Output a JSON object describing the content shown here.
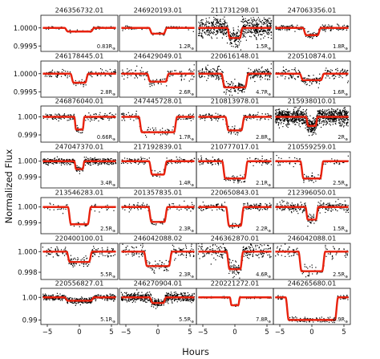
{
  "chart_data": {
    "type": "scatter",
    "xlabel": "Hours",
    "ylabel": "Normalized Flux",
    "xlim": [
      -6,
      6
    ],
    "xticks": [
      -5,
      0,
      5
    ],
    "radius_unit": "R",
    "radius_unit_sub": "⊕",
    "series_styles": {
      "data_points": "#000000",
      "model_fit": "#e8210d"
    },
    "rows": [
      {
        "ylim": [
          0.99935,
          1.00035
        ],
        "yticks": [
          0.9995,
          1.0
        ],
        "ytick_labels": [
          "0.9995",
          "1.0000"
        ]
      },
      {
        "ylim": [
          0.99935,
          1.00035
        ],
        "yticks": [
          0.9995,
          1.0
        ],
        "ytick_labels": [
          "0.9995",
          "1.0000"
        ]
      },
      {
        "ylim": [
          0.9986,
          1.0006
        ],
        "yticks": [
          0.999,
          1.0
        ],
        "ytick_labels": [
          "0.999",
          "1.000"
        ]
      },
      {
        "ylim": [
          0.9983,
          1.0006
        ],
        "yticks": [
          0.999,
          1.0
        ],
        "ytick_labels": [
          "0.999",
          "1.000"
        ]
      },
      {
        "ylim": [
          0.9983,
          1.0006
        ],
        "yticks": [
          0.999,
          1.0
        ],
        "ytick_labels": [
          "0.999",
          "1.000"
        ]
      },
      {
        "ylim": [
          0.9973,
          1.0008
        ],
        "yticks": [
          0.998,
          1.0
        ],
        "ytick_labels": [
          "0.998",
          "1.000"
        ]
      },
      {
        "ylim": [
          0.988,
          1.004
        ],
        "yticks": [
          0.99,
          1.0
        ],
        "ytick_labels": [
          "0.99",
          "1.00"
        ]
      }
    ],
    "panels": [
      {
        "title": "246356732.01",
        "radius": "0.83",
        "depth": 0.0001,
        "duration": 4.6,
        "noise": 1.8e-05,
        "n": 110,
        "seed": 1
      },
      {
        "title": "246920193.01",
        "radius": "1.2",
        "depth": 0.00016,
        "duration": 2.8,
        "noise": 2.5e-05,
        "n": 110,
        "seed": 2
      },
      {
        "title": "211731298.01",
        "radius": "1.5",
        "depth": 0.00028,
        "duration": 2.4,
        "noise": 0.00014,
        "n": 700,
        "seed": 3
      },
      {
        "title": "247063356.01",
        "radius": "1.8",
        "depth": 0.0002,
        "duration": 2.8,
        "noise": 4e-05,
        "n": 220,
        "seed": 4
      },
      {
        "title": "246178445.01",
        "radius": "2.8",
        "depth": 0.00025,
        "duration": 2.8,
        "noise": 5e-05,
        "n": 140,
        "seed": 5
      },
      {
        "title": "246429049.01",
        "radius": "2.6",
        "depth": 0.00022,
        "duration": 3.4,
        "noise": 7e-05,
        "n": 150,
        "seed": 6
      },
      {
        "title": "220616148.01",
        "radius": "4.7",
        "depth": 0.00038,
        "duration": 4.2,
        "noise": 8e-05,
        "n": 380,
        "seed": 7
      },
      {
        "title": "220510874.01",
        "radius": "1.6",
        "depth": 0.00018,
        "duration": 3.8,
        "noise": 7e-05,
        "n": 220,
        "seed": 8
      },
      {
        "title": "246876040.01",
        "radius": "0.66",
        "depth": 0.0007,
        "duration": 1.6,
        "noise": 0.0001,
        "n": 200,
        "seed": 9
      },
      {
        "title": "247445728.01",
        "radius": "1.7",
        "depth": 0.00085,
        "duration": 6.0,
        "noise": 0.00012,
        "n": 130,
        "seed": 10
      },
      {
        "title": "210813978.01",
        "radius": "2.8",
        "depth": 0.00075,
        "duration": 3.0,
        "noise": 0.0001,
        "n": 180,
        "seed": 11
      },
      {
        "title": "215938010.01",
        "radius": "2",
        "depth": 0.0005,
        "duration": 1.8,
        "noise": 0.00022,
        "n": 1100,
        "seed": 12
      },
      {
        "title": "247047370.01",
        "radius": "3.4",
        "depth": 0.0005,
        "duration": 1.6,
        "noise": 0.0001,
        "n": 420,
        "seed": 13
      },
      {
        "title": "217192839.01",
        "radius": "1.4",
        "depth": 0.00085,
        "duration": 2.8,
        "noise": 0.00012,
        "n": 140,
        "seed": 14
      },
      {
        "title": "210777017.01",
        "radius": "2.1",
        "depth": 0.0011,
        "duration": 4.0,
        "noise": 0.00012,
        "n": 160,
        "seed": 15
      },
      {
        "title": "210559259.01",
        "radius": "2.5",
        "depth": 0.0011,
        "duration": 3.6,
        "noise": 0.00015,
        "n": 90,
        "seed": 16
      },
      {
        "title": "213546283.01",
        "radius": "2.5",
        "depth": 0.0011,
        "duration": 3.6,
        "noise": 0.00012,
        "n": 80,
        "seed": 17
      },
      {
        "title": "201357835.01",
        "radius": "2.3",
        "depth": 0.00095,
        "duration": 3.0,
        "noise": 0.00012,
        "n": 120,
        "seed": 18
      },
      {
        "title": "220650843.01",
        "radius": "2.2",
        "depth": 0.0012,
        "duration": 2.8,
        "noise": 0.00012,
        "n": 200,
        "seed": 19
      },
      {
        "title": "212396050.01",
        "radius": "1.5",
        "depth": 0.0008,
        "duration": 2.0,
        "noise": 0.00015,
        "n": 300,
        "seed": 20
      },
      {
        "title": "220400100.01",
        "radius": "5.5",
        "depth": 0.001,
        "duration": 4.0,
        "noise": 0.00025,
        "n": 200,
        "seed": 21
      },
      {
        "title": "246042088.02",
        "radius": "2.3",
        "depth": 0.0014,
        "duration": 4.4,
        "noise": 0.0003,
        "n": 180,
        "seed": 22
      },
      {
        "title": "246362870.01",
        "radius": "4.6",
        "depth": 0.0017,
        "duration": 2.6,
        "noise": 0.0004,
        "n": 280,
        "seed": 23
      },
      {
        "title": "246042088.01",
        "radius": "2.5",
        "depth": 0.0019,
        "duration": 4.2,
        "noise": 0.0003,
        "n": 120,
        "seed": 24
      },
      {
        "title": "220556827.01",
        "radius": "5.1",
        "depth": 0.0015,
        "duration": 4.6,
        "noise": 0.0006,
        "n": 500,
        "seed": 25
      },
      {
        "title": "246270904.01",
        "radius": "5.5",
        "depth": 0.0025,
        "duration": 2.6,
        "noise": 0.001,
        "n": 600,
        "seed": 26
      },
      {
        "title": "220221272.01",
        "radius": "7.8",
        "depth": 0.0035,
        "duration": 1.6,
        "noise": 0.0002,
        "n": 150,
        "seed": 27
      },
      {
        "title": "246265680.01",
        "radius": "6.9",
        "depth": 0.01,
        "duration": 8.2,
        "noise": 0.0006,
        "n": 160,
        "seed": 28
      }
    ]
  }
}
